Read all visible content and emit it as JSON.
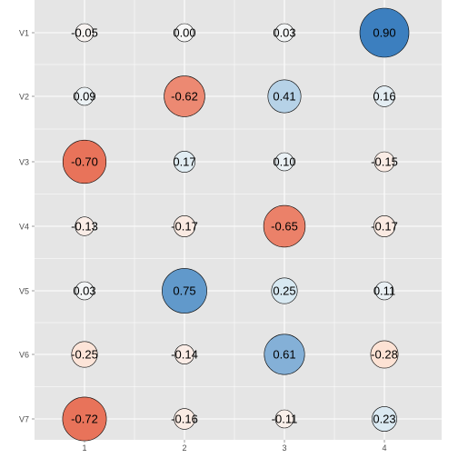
{
  "chart_data": {
    "type": "bubble-matrix",
    "x_categories": [
      "1",
      "2",
      "3",
      "4"
    ],
    "y_categories": [
      "V1",
      "V2",
      "V3",
      "V4",
      "V5",
      "V6",
      "V7"
    ],
    "values": [
      [
        -0.05,
        0.0,
        0.03,
        0.9
      ],
      [
        0.09,
        -0.62,
        0.41,
        0.16
      ],
      [
        -0.7,
        0.17,
        0.1,
        -0.15
      ],
      [
        -0.13,
        -0.17,
        -0.65,
        -0.17
      ],
      [
        0.03,
        0.75,
        0.25,
        0.11
      ],
      [
        -0.25,
        -0.14,
        0.61,
        -0.28
      ],
      [
        -0.72,
        -0.16,
        -0.11,
        0.23
      ]
    ],
    "labels": [
      [
        "-0.05",
        "0.00",
        "0.03",
        "0.90"
      ],
      [
        "0.09",
        "-0.62",
        "0.41",
        "0.16"
      ],
      [
        "-0.70",
        "0.17",
        "0.10",
        "-0.15"
      ],
      [
        "-0.13",
        "-0.17",
        "-0.65",
        "-0.17"
      ],
      [
        "0.03",
        "0.75",
        "0.25",
        "0.11"
      ],
      [
        "-0.25",
        "-0.14",
        "0.61",
        "-0.28"
      ],
      [
        "-0.72",
        "-0.16",
        "-0.11",
        "0.23"
      ]
    ],
    "title": "",
    "xlabel": "",
    "ylabel": "",
    "grid": true,
    "legend": "none",
    "colors": {
      "panel_background": "#e5e5e5",
      "grid_line": "#ffffff",
      "negative_strong": "#e8735a",
      "negative_light": "#fde0d2",
      "neutral": "#f7f7f7",
      "positive_light": "#d1e5f0",
      "positive_strong": "#3c7fbf",
      "circle_outline": "#000000"
    }
  }
}
